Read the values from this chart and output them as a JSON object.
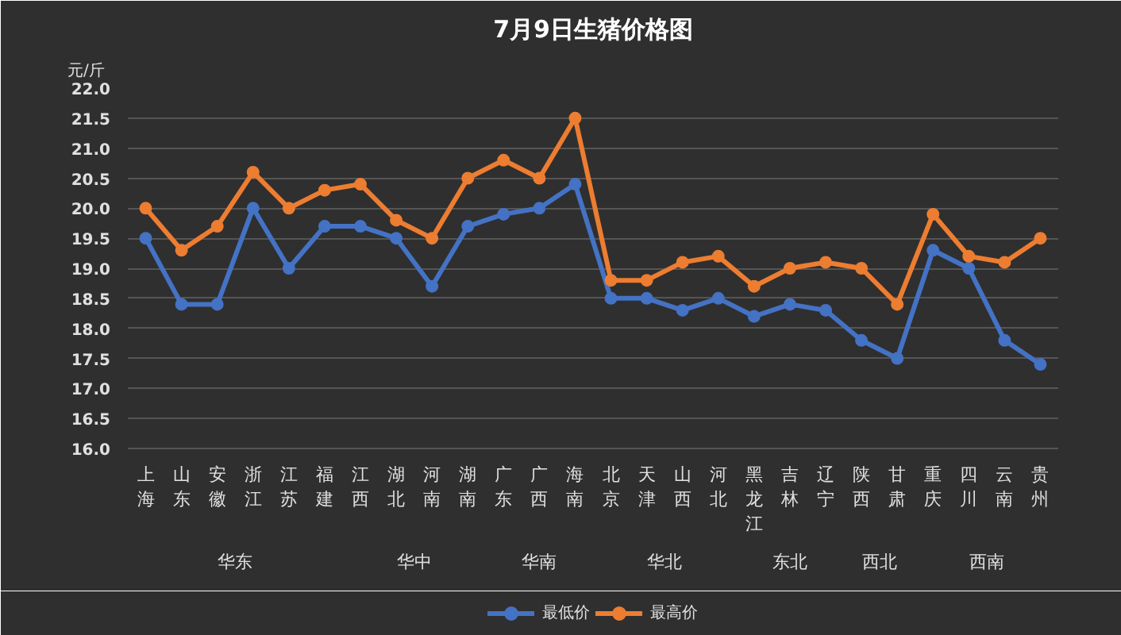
{
  "chart_data": {
    "type": "line",
    "title": "7月9日生猪价格图",
    "ylabel": "元/斤",
    "categories": [
      "上海",
      "山东",
      "安徽",
      "浙江",
      "江苏",
      "福建",
      "江西",
      "湖北",
      "河南",
      "湖南",
      "广东",
      "广西",
      "海南",
      "北京",
      "天津",
      "山西",
      "河北",
      "黑龙江",
      "吉林",
      "辽宁",
      "陕西",
      "甘肃",
      "重庆",
      "四川",
      "云南",
      "贵州"
    ],
    "series": [
      {
        "name": "最低价",
        "color": "#4472c4",
        "values": [
          19.5,
          18.4,
          18.4,
          20.0,
          19.0,
          19.7,
          19.7,
          19.5,
          18.7,
          19.7,
          19.9,
          20.0,
          20.4,
          18.5,
          18.5,
          18.3,
          18.5,
          18.2,
          18.4,
          18.3,
          17.8,
          17.5,
          19.3,
          19.0,
          17.8,
          17.4
        ]
      },
      {
        "name": "最高价",
        "color": "#ed7d31",
        "values": [
          20.0,
          19.3,
          19.7,
          20.6,
          20.0,
          20.3,
          20.4,
          19.8,
          19.5,
          20.5,
          20.8,
          20.5,
          21.5,
          18.8,
          18.8,
          19.1,
          19.2,
          18.7,
          19.0,
          19.1,
          19.0,
          18.4,
          19.9,
          19.2,
          19.1,
          19.5
        ]
      }
    ],
    "ylim": [
      16,
      22
    ],
    "yticks": [
      {
        "value": 16,
        "label": "16.0"
      },
      {
        "value": 16.5,
        "label": "16.5"
      },
      {
        "value": 17,
        "label": "17.0"
      },
      {
        "value": 17.5,
        "label": "17.5"
      },
      {
        "value": 18,
        "label": "18.0"
      },
      {
        "value": 18.5,
        "label": "18.5"
      },
      {
        "value": 19,
        "label": "19.0"
      },
      {
        "value": 19.5,
        "label": "19.5"
      },
      {
        "value": 20,
        "label": "20.0"
      },
      {
        "value": 20.5,
        "label": "20.5"
      },
      {
        "value": 21,
        "label": "21.0"
      },
      {
        "value": 21.5,
        "label": "21.5"
      },
      {
        "value": 22,
        "label": "22.0"
      }
    ],
    "grid": "y",
    "legend": "bottom",
    "marker": "circle",
    "annotations": [
      "华东",
      "华中",
      "华南",
      "华北",
      "东北",
      "西北",
      "西南"
    ]
  }
}
